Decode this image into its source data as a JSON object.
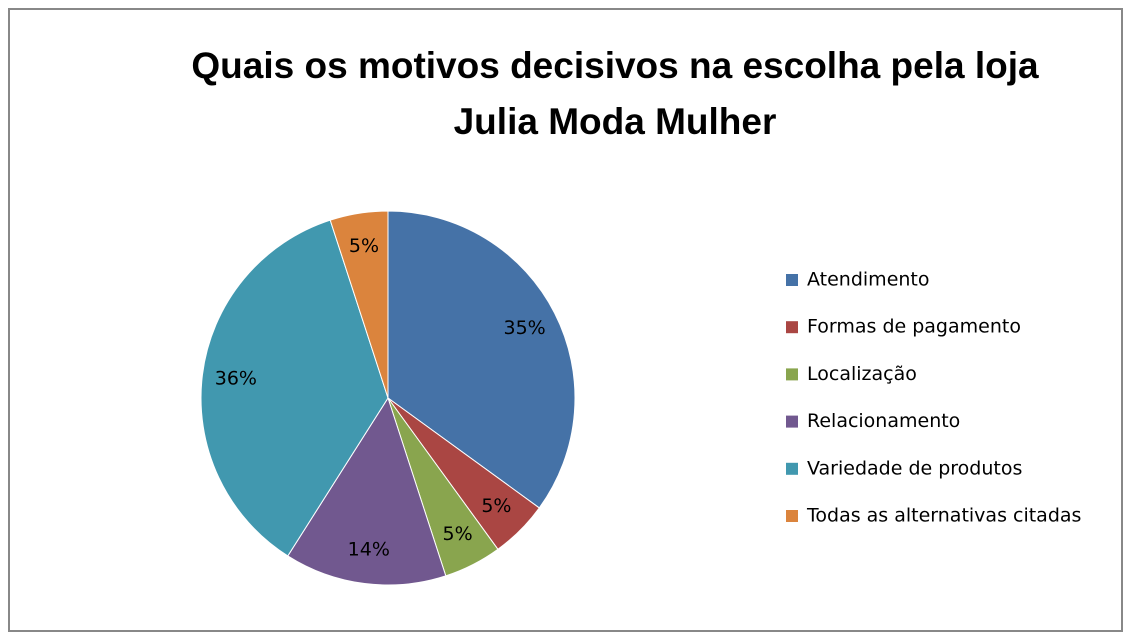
{
  "chart_data": {
    "type": "pie",
    "title": "Quais os motivos decisivos na escolha pela loja Julia Moda Mulher",
    "categories": [
      "Atendimento",
      "Formas de pagamento",
      "Localização",
      "Relacionamento",
      "Variedade de produtos",
      "Todas as alternativas citadas"
    ],
    "values": [
      35,
      5,
      5,
      14,
      36,
      5
    ],
    "value_labels": [
      "35%",
      "5%",
      "5%",
      "14%",
      "36%",
      "5%"
    ],
    "colors": [
      "#4572a7",
      "#aa4643",
      "#89a54e",
      "#71588f",
      "#4198af",
      "#db843d"
    ],
    "legend": "right"
  }
}
